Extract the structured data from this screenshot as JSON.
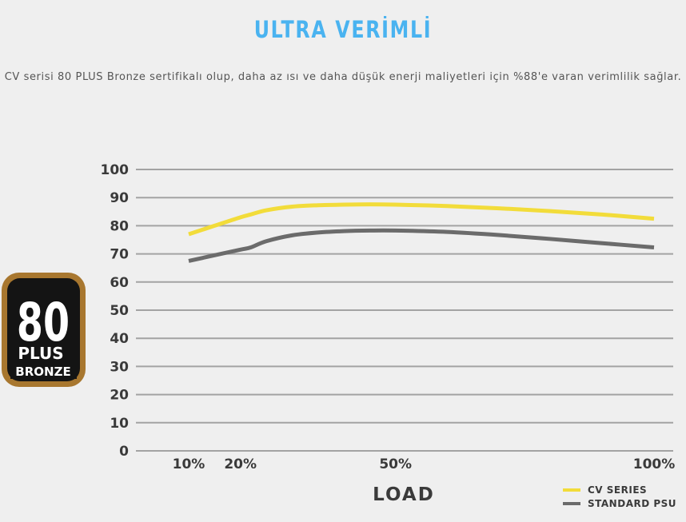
{
  "header": {
    "title": "ULTRA VERİMLİ",
    "description": "CV serisi 80 PLUS Bronze sertifikalı olup, daha az ısı ve daha düşük enerji maliyetleri için %88'e varan verimlilik sağlar."
  },
  "badge": {
    "number": "80",
    "plus": "PLUS",
    "tier": "BRONZE",
    "colors": {
      "gold": "#a8772f",
      "dark": "#141414"
    }
  },
  "chart_data": {
    "type": "line",
    "title": "",
    "xlabel": "LOAD",
    "ylabel": "",
    "ylim": [
      0,
      100
    ],
    "yticks": [
      "0",
      "10",
      "20",
      "30",
      "40",
      "50",
      "60",
      "70",
      "80",
      "90",
      "100"
    ],
    "xlim": [
      0,
      100
    ],
    "xticks": [
      {
        "value": 10,
        "label": "10%"
      },
      {
        "value": 20,
        "label": "20%"
      },
      {
        "value": 50,
        "label": "50%"
      },
      {
        "value": 100,
        "label": "100%"
      }
    ],
    "grid": true,
    "legend_position": "bottom-right",
    "series": [
      {
        "name": "CV SERIES",
        "color": "#f2dc3a",
        "x": [
          10,
          15,
          20,
          22,
          25,
          30,
          35,
          40,
          45,
          50,
          60,
          70,
          80,
          90,
          100
        ],
        "y": [
          77,
          80,
          83,
          84,
          85.5,
          86.8,
          87.3,
          87.5,
          87.6,
          87.5,
          87,
          86.2,
          85.2,
          84,
          82.5
        ]
      },
      {
        "name": "STANDARD PSU",
        "color": "#6b6b6b",
        "x": [
          10,
          15,
          20,
          22,
          25,
          30,
          35,
          40,
          45,
          50,
          60,
          70,
          80,
          90,
          100
        ],
        "y": [
          67.5,
          69.5,
          71.5,
          72.3,
          74.5,
          76.6,
          77.6,
          78.1,
          78.3,
          78.3,
          77.8,
          76.7,
          75.3,
          73.8,
          72.3
        ]
      }
    ]
  }
}
